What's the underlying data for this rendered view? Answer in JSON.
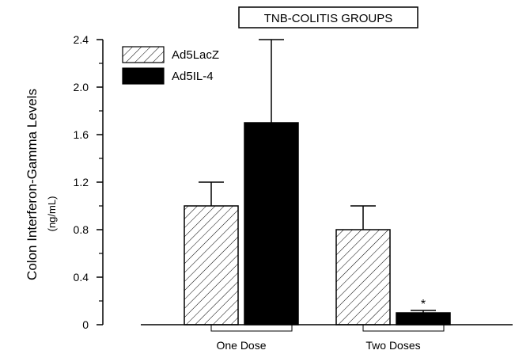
{
  "chart_data": {
    "type": "bar",
    "title": "TNB-COLITIS GROUPS",
    "ylabel": "Colon Interferon-Gamma Levels",
    "yunit": "(ng/mL)",
    "categories": [
      "One Dose",
      "Two Doses"
    ],
    "ylim": [
      0,
      2.4
    ],
    "yticks": [
      "0",
      "0.4",
      "0.8",
      "1.2",
      "1.6",
      "2.0",
      "2.4"
    ],
    "yticks_values": [
      0,
      0.4,
      0.8,
      1.2,
      1.6,
      2.0,
      2.4
    ],
    "series": [
      {
        "name": "Ad5LacZ",
        "pattern": "hatched",
        "values": [
          1.0,
          0.8
        ],
        "errors": [
          0.2,
          0.2
        ]
      },
      {
        "name": "Ad5IL-4",
        "pattern": "solid",
        "color": "#000000",
        "values": [
          1.7,
          0.1
        ],
        "errors": [
          0.7,
          0.02
        ]
      }
    ],
    "annotations": [
      {
        "text": "*",
        "category": "Two Doses",
        "series": "Ad5IL-4"
      }
    ],
    "legend_position": "top-left",
    "grid": false
  }
}
